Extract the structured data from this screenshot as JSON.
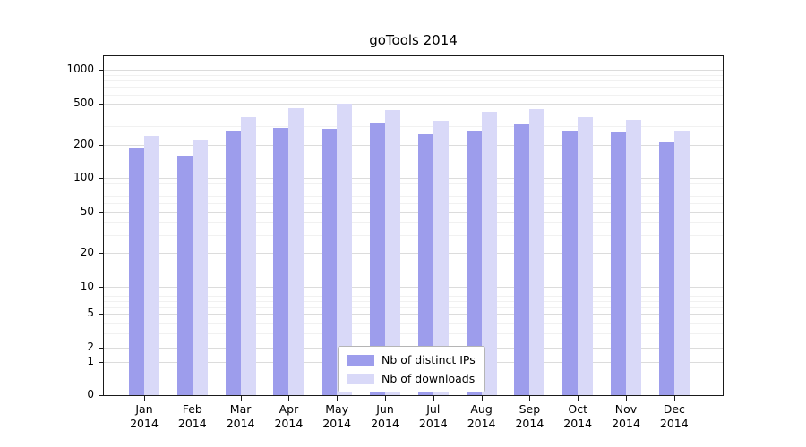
{
  "chart_data": {
    "type": "bar",
    "title": "goTools 2014",
    "year": "2014",
    "categories": [
      "Jan",
      "Feb",
      "Mar",
      "Apr",
      "May",
      "Jun",
      "Jul",
      "Aug",
      "Sep",
      "Oct",
      "Nov",
      "Dec"
    ],
    "series": [
      {
        "name": "Nb of distinct IPs",
        "color": "#9d9dec",
        "values": [
          185,
          160,
          270,
          290,
          285,
          320,
          250,
          275,
          315,
          275,
          260,
          210
        ]
      },
      {
        "name": "Nb of downloads",
        "color": "#d9d9f8",
        "values": [
          240,
          220,
          370,
          450,
          500,
          430,
          340,
          415,
          440,
          370,
          345,
          270
        ]
      }
    ],
    "yscale": "symlog",
    "ylim": [
      0,
      1000
    ],
    "y_ticks": [
      0,
      1,
      2,
      5,
      10,
      20,
      50,
      100,
      200,
      500,
      1000
    ],
    "minor_ticks": [
      3,
      4,
      6,
      7,
      8,
      9,
      30,
      40,
      60,
      70,
      80,
      90,
      300,
      400,
      600,
      700,
      800,
      900
    ],
    "scale_points": [
      [
        0,
        0
      ],
      [
        1,
        0.097
      ],
      [
        2,
        0.139
      ],
      [
        5,
        0.239
      ],
      [
        10,
        0.32
      ],
      [
        20,
        0.42
      ],
      [
        50,
        0.541
      ],
      [
        100,
        0.64
      ],
      [
        200,
        0.74
      ],
      [
        500,
        0.861
      ],
      [
        1000,
        0.961
      ]
    ],
    "grid": true,
    "legend_position": "lower-center",
    "legend_entries": [
      "Nb of distinct IPs",
      "Nb of downloads"
    ]
  },
  "colors": {
    "ips_bar": "#9d9dec",
    "downloads_bar": "#d9d9f8",
    "grid_major": "#dcdcdc",
    "grid_minor": "#f1f1f1",
    "axis": "#1a1a1a",
    "legend_border": "#b5b5b5",
    "background": "#ffffff"
  }
}
